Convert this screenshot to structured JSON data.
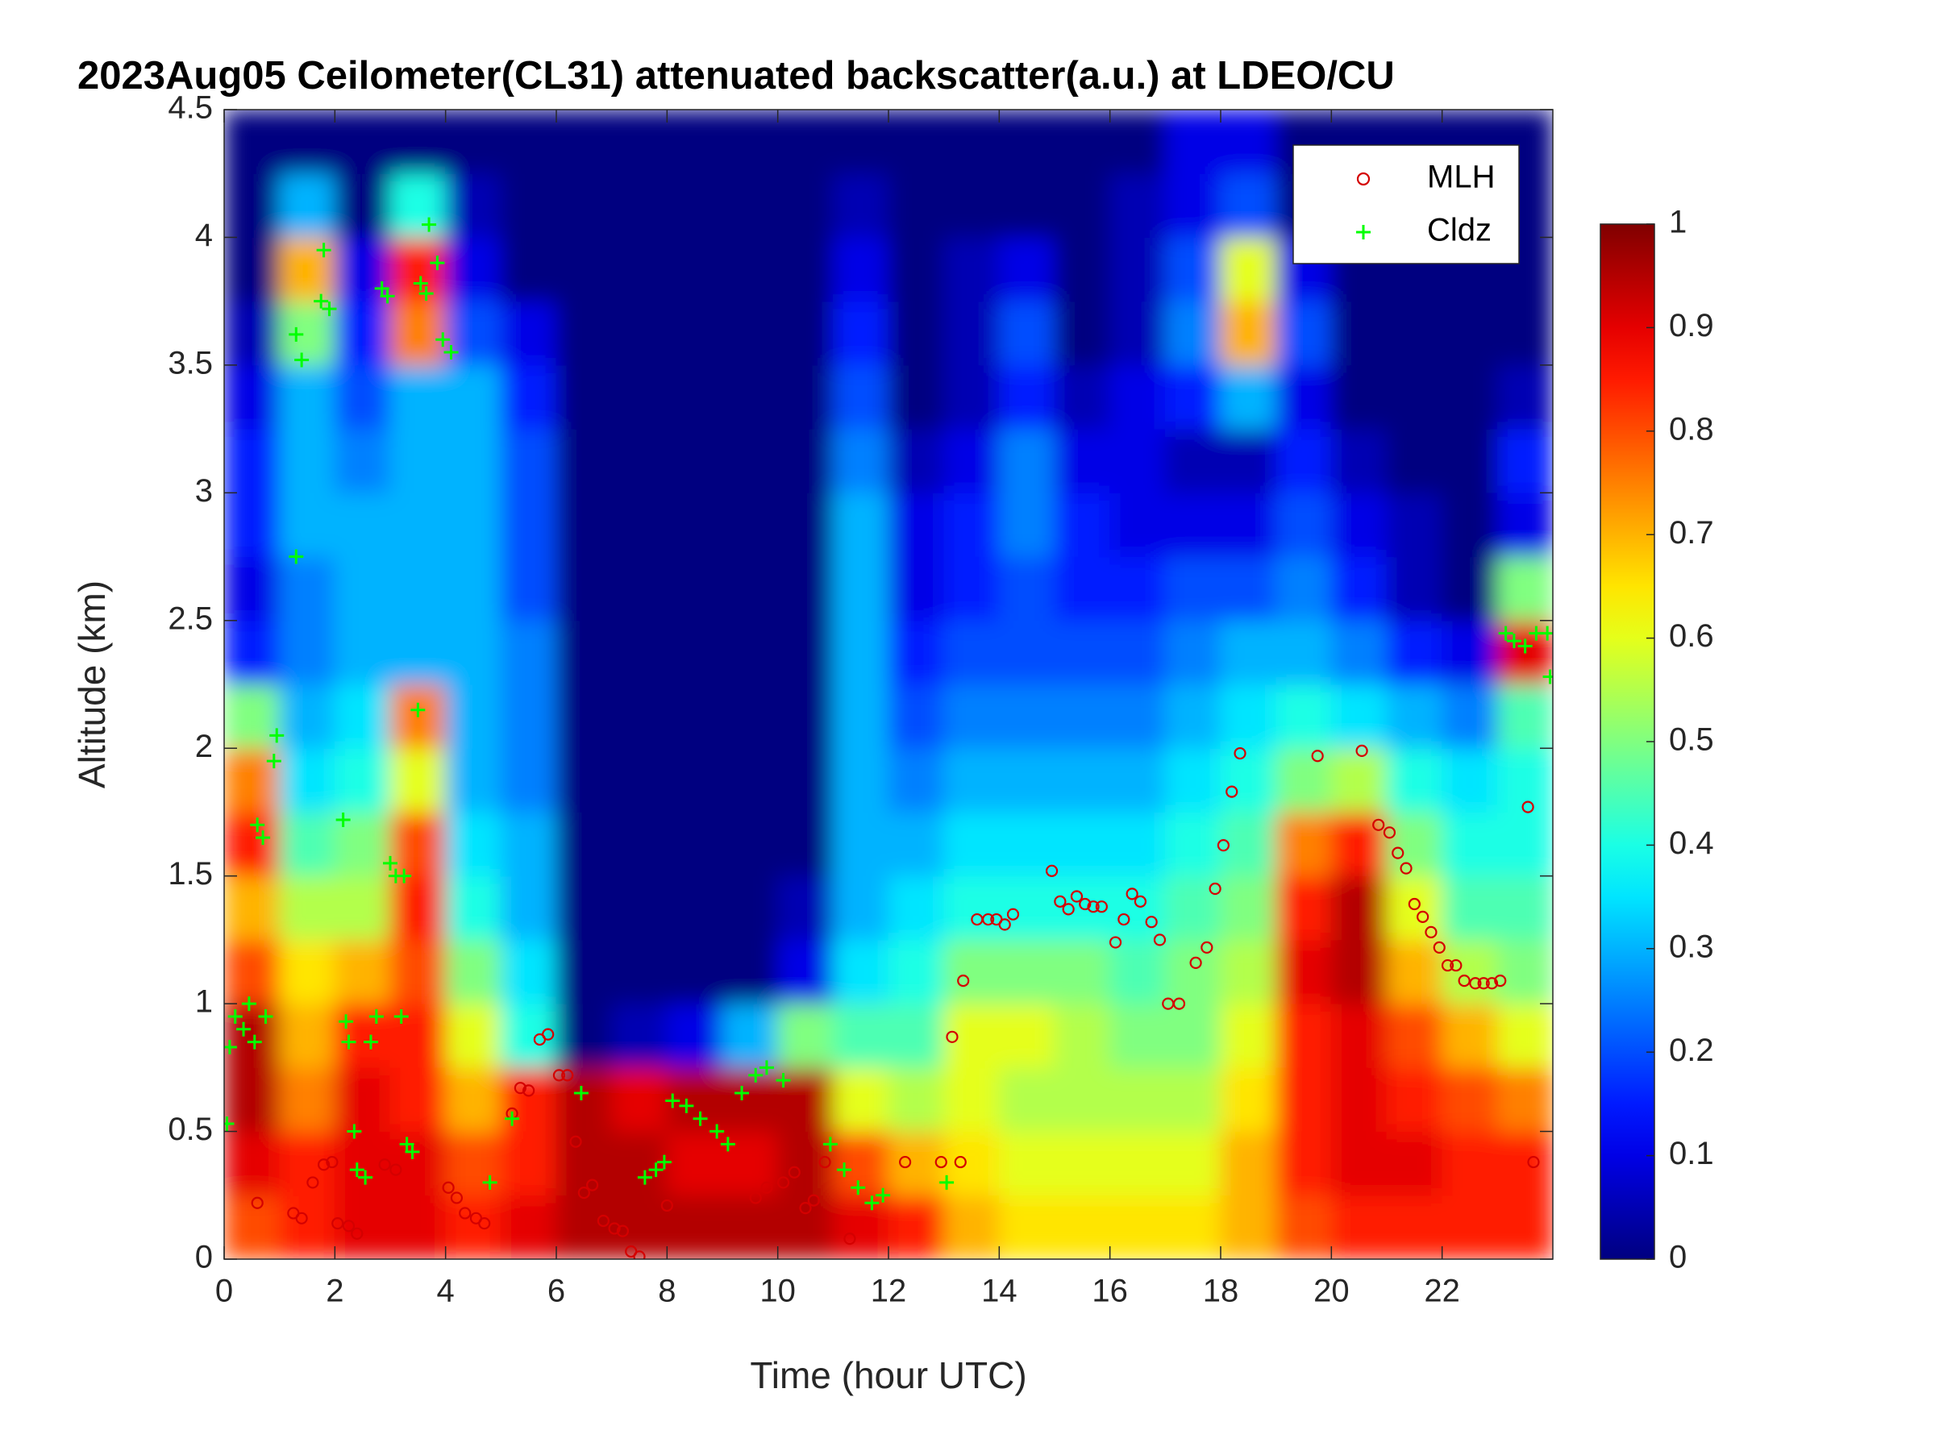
{
  "chart_data": {
    "type": "heatmap",
    "title": "2023Aug05 Ceilometer(CL31) attenuated backscatter(a.u.) at LDEO/CU",
    "xlabel": "Time (hour UTC)",
    "ylabel": "Altitude (km)",
    "xlim": [
      0,
      24
    ],
    "ylim": [
      0,
      4.5
    ],
    "xticks": [
      0,
      2,
      4,
      6,
      8,
      10,
      12,
      14,
      16,
      18,
      20,
      22
    ],
    "yticks": [
      0,
      0.5,
      1,
      1.5,
      2,
      2.5,
      3,
      3.5,
      4,
      4.5
    ],
    "x": [
      0.5,
      1.5,
      2.5,
      3.5,
      4.5,
      5.5,
      6.5,
      7.5,
      8.5,
      9.5,
      10.5,
      11.5,
      12.5,
      13.5,
      14.5,
      15.5,
      16.5,
      17.5,
      18.5,
      19.5,
      20.5,
      21.5,
      22.5,
      23.5
    ],
    "y": [
      0.125,
      0.375,
      0.625,
      0.875,
      1.125,
      1.375,
      1.625,
      1.875,
      2.125,
      2.375,
      2.625,
      2.875,
      3.125,
      3.375,
      3.625,
      3.875,
      4.125,
      4.375
    ],
    "z": [
      [
        0.8,
        0.85,
        0.9,
        0.9,
        0.85,
        0.9,
        0.95,
        0.95,
        0.95,
        0.95,
        0.95,
        0.9,
        0.85,
        0.7,
        0.65,
        0.65,
        0.65,
        0.65,
        0.7,
        0.8,
        0.85,
        0.85,
        0.85,
        0.85
      ],
      [
        0.9,
        0.85,
        0.9,
        0.9,
        0.8,
        0.85,
        0.95,
        0.95,
        0.9,
        0.9,
        0.95,
        0.8,
        0.7,
        0.65,
        0.6,
        0.6,
        0.6,
        0.6,
        0.7,
        0.85,
        0.9,
        0.9,
        0.85,
        0.85
      ],
      [
        0.95,
        0.75,
        0.9,
        0.85,
        0.7,
        0.85,
        0.95,
        0.9,
        0.95,
        0.95,
        0.95,
        0.6,
        0.55,
        0.6,
        0.55,
        0.55,
        0.55,
        0.55,
        0.65,
        0.85,
        0.9,
        0.85,
        0.8,
        0.75
      ],
      [
        0.95,
        0.7,
        0.85,
        0.85,
        0.6,
        0.4,
        0,
        0.05,
        0.1,
        0.3,
        0.5,
        0.45,
        0.45,
        0.6,
        0.6,
        0.55,
        0.5,
        0.5,
        0.6,
        0.85,
        0.9,
        0.8,
        0.7,
        0.6
      ],
      [
        0.8,
        0.65,
        0.7,
        0.8,
        0.5,
        0.35,
        0,
        0,
        0,
        0,
        0.1,
        0.35,
        0.4,
        0.5,
        0.5,
        0.5,
        0.45,
        0.5,
        0.55,
        0.9,
        0.95,
        0.7,
        0.55,
        0.5
      ],
      [
        0.7,
        0.55,
        0.55,
        0.85,
        0.4,
        0.3,
        0,
        0,
        0,
        0,
        0.05,
        0.3,
        0.35,
        0.4,
        0.4,
        0.4,
        0.4,
        0.45,
        0.5,
        0.85,
        0.95,
        0.6,
        0.45,
        0.45
      ],
      [
        0.85,
        0.45,
        0.5,
        0.8,
        0.35,
        0.3,
        0,
        0,
        0,
        0,
        0,
        0.3,
        0.3,
        0.35,
        0.35,
        0.35,
        0.35,
        0.4,
        0.45,
        0.75,
        0.85,
        0.5,
        0.4,
        0.4
      ],
      [
        0.75,
        0.35,
        0.4,
        0.6,
        0.3,
        0.25,
        0,
        0,
        0,
        0,
        0,
        0.3,
        0.25,
        0.3,
        0.3,
        0.3,
        0.3,
        0.35,
        0.4,
        0.5,
        0.55,
        0.4,
        0.35,
        0.4
      ],
      [
        0.5,
        0.3,
        0.35,
        0.75,
        0.3,
        0.25,
        0,
        0,
        0,
        0,
        0,
        0.3,
        0.2,
        0.25,
        0.25,
        0.25,
        0.25,
        0.3,
        0.35,
        0.4,
        0.35,
        0.3,
        0.25,
        0.45
      ],
      [
        0.15,
        0.25,
        0.3,
        0.3,
        0.3,
        0.25,
        0,
        0,
        0,
        0,
        0,
        0.3,
        0.15,
        0.2,
        0.2,
        0.2,
        0.2,
        0.25,
        0.3,
        0.3,
        0.25,
        0.15,
        0.1,
        0.9
      ],
      [
        0.1,
        0.25,
        0.3,
        0.3,
        0.3,
        0.2,
        0,
        0,
        0,
        0,
        0,
        0.3,
        0.1,
        0.15,
        0.2,
        0.15,
        0.15,
        0.2,
        0.2,
        0.25,
        0.15,
        0.05,
        0,
        0.5
      ],
      [
        0.15,
        0.3,
        0.3,
        0.3,
        0.3,
        0.2,
        0,
        0,
        0,
        0,
        0,
        0.3,
        0.1,
        0.15,
        0.25,
        0.15,
        0.1,
        0.1,
        0.1,
        0.2,
        0.1,
        0.05,
        0,
        0.1
      ],
      [
        0.15,
        0.3,
        0.25,
        0.3,
        0.3,
        0.2,
        0,
        0,
        0,
        0,
        0,
        0.25,
        0.05,
        0.1,
        0.25,
        0.1,
        0.1,
        0.05,
        0.05,
        0.15,
        0.05,
        0,
        0,
        0.15
      ],
      [
        0.1,
        0.3,
        0.2,
        0.3,
        0.3,
        0.15,
        0,
        0,
        0,
        0,
        0,
        0.2,
        0,
        0.05,
        0.15,
        0.05,
        0.1,
        0.15,
        0.3,
        0.1,
        0,
        0,
        0,
        0.05
      ],
      [
        0.05,
        0.5,
        0.15,
        0.75,
        0.2,
        0.1,
        0,
        0,
        0,
        0,
        0,
        0.15,
        0,
        0.05,
        0.2,
        0,
        0.05,
        0.25,
        0.7,
        0.2,
        0,
        0,
        0,
        0
      ],
      [
        0,
        0.7,
        0.1,
        0.85,
        0.1,
        0,
        0,
        0,
        0,
        0,
        0,
        0.1,
        0,
        0.05,
        0.1,
        0,
        0.05,
        0.2,
        0.6,
        0.1,
        0,
        0,
        0,
        0
      ],
      [
        0,
        0.3,
        0,
        0.4,
        0.05,
        0,
        0,
        0,
        0,
        0,
        0,
        0.05,
        0,
        0,
        0,
        0,
        0.05,
        0.1,
        0.2,
        0,
        0,
        0,
        0,
        0
      ],
      [
        0,
        0,
        0,
        0,
        0,
        0,
        0,
        0,
        0,
        0,
        0,
        0,
        0,
        0,
        0,
        0,
        0,
        0.1,
        0.1,
        0,
        0,
        0,
        0,
        0
      ]
    ],
    "colorbar": {
      "colormap": "jet",
      "lim": [
        0,
        1
      ],
      "ticks": [
        0,
        0.1,
        0.2,
        0.3,
        0.4,
        0.5,
        0.6,
        0.7,
        0.8,
        0.9,
        1
      ]
    },
    "legend": "upper right",
    "series": [
      {
        "name": "MLH",
        "type": "scatter",
        "marker": "circle",
        "color": "#d40000",
        "x": [
          0.6,
          1.25,
          1.4,
          1.6,
          1.8,
          1.95,
          2.05,
          2.25,
          2.4,
          2.9,
          3.1,
          4.05,
          4.2,
          4.35,
          4.55,
          4.7,
          5.2,
          5.35,
          5.5,
          5.7,
          5.85,
          6.05,
          6.2,
          6.35,
          6.5,
          6.65,
          6.85,
          7.05,
          7.2,
          7.35,
          7.5,
          8.0,
          9.6,
          9.8,
          10.1,
          10.3,
          10.5,
          10.65,
          10.85,
          11.3,
          12.3,
          12.95,
          13.15,
          13.3,
          13.35,
          13.6,
          13.8,
          13.95,
          14.1,
          14.25,
          14.95,
          15.1,
          15.25,
          15.4,
          15.55,
          15.7,
          15.85,
          16.1,
          16.25,
          16.4,
          16.55,
          16.75,
          16.9,
          17.05,
          17.25,
          17.55,
          17.75,
          17.9,
          18.05,
          18.2,
          18.35,
          19.75,
          20.55,
          20.85,
          21.05,
          21.2,
          21.35,
          21.5,
          21.65,
          21.8,
          21.95,
          22.1,
          22.25,
          22.4,
          22.6,
          22.75,
          22.9,
          23.05,
          23.55,
          23.65
        ],
        "values": [
          0.22,
          0.18,
          0.16,
          0.3,
          0.37,
          0.38,
          0.14,
          0.13,
          0.1,
          0.37,
          0.35,
          0.28,
          0.24,
          0.18,
          0.16,
          0.14,
          0.57,
          0.67,
          0.66,
          0.86,
          0.88,
          0.72,
          0.72,
          0.46,
          0.26,
          0.29,
          0.15,
          0.12,
          0.11,
          0.03,
          0.01,
          0.21,
          0.24,
          0.28,
          0.3,
          0.34,
          0.2,
          0.23,
          0.38,
          0.08,
          0.38,
          0.38,
          0.87,
          0.38,
          1.09,
          1.33,
          1.33,
          1.33,
          1.31,
          1.35,
          1.52,
          1.4,
          1.37,
          1.42,
          1.39,
          1.38,
          1.38,
          1.24,
          1.33,
          1.43,
          1.4,
          1.32,
          1.25,
          1.0,
          1.0,
          1.16,
          1.22,
          1.45,
          1.62,
          1.83,
          1.98,
          1.97,
          1.99,
          1.7,
          1.67,
          1.59,
          1.53,
          1.39,
          1.34,
          1.28,
          1.22,
          1.15,
          1.15,
          1.09,
          1.08,
          1.08,
          1.08,
          1.09,
          1.77,
          0.38
        ]
      },
      {
        "name": "Cldz",
        "type": "scatter",
        "marker": "plus",
        "color": "#00ff00",
        "x": [
          0.05,
          0.1,
          0.2,
          0.35,
          0.45,
          0.55,
          0.6,
          0.7,
          0.75,
          0.9,
          0.95,
          1.3,
          1.4,
          1.3,
          1.75,
          1.8,
          1.9,
          2.15,
          2.2,
          2.25,
          2.35,
          2.4,
          2.55,
          2.65,
          2.75,
          2.85,
          2.95,
          3.0,
          3.1,
          3.25,
          3.2,
          3.3,
          3.4,
          3.5,
          3.55,
          3.65,
          3.7,
          3.85,
          3.95,
          4.1,
          4.8,
          5.2,
          6.45,
          7.6,
          7.8,
          7.95,
          8.1,
          8.35,
          8.6,
          8.9,
          9.1,
          9.35,
          9.6,
          9.8,
          10.1,
          10.95,
          11.2,
          11.45,
          11.7,
          11.9,
          13.05,
          23.15,
          23.3,
          23.5,
          23.7,
          23.9,
          23.95
        ],
        "values": [
          0.53,
          0.83,
          0.95,
          0.9,
          1.0,
          0.85,
          1.7,
          1.65,
          0.95,
          1.95,
          2.05,
          3.62,
          3.52,
          2.75,
          3.75,
          3.95,
          3.72,
          1.72,
          0.93,
          0.85,
          0.5,
          0.35,
          0.32,
          0.85,
          0.95,
          3.8,
          3.77,
          1.55,
          1.5,
          1.5,
          0.95,
          0.45,
          0.42,
          2.15,
          3.82,
          3.78,
          4.05,
          3.9,
          3.6,
          3.55,
          0.3,
          0.55,
          0.65,
          0.32,
          0.35,
          0.38,
          0.62,
          0.6,
          0.55,
          0.5,
          0.45,
          0.65,
          0.72,
          0.75,
          0.7,
          0.45,
          0.35,
          0.28,
          0.22,
          0.25,
          0.3,
          2.45,
          2.42,
          2.4,
          2.45,
          2.45,
          2.28
        ]
      }
    ]
  }
}
